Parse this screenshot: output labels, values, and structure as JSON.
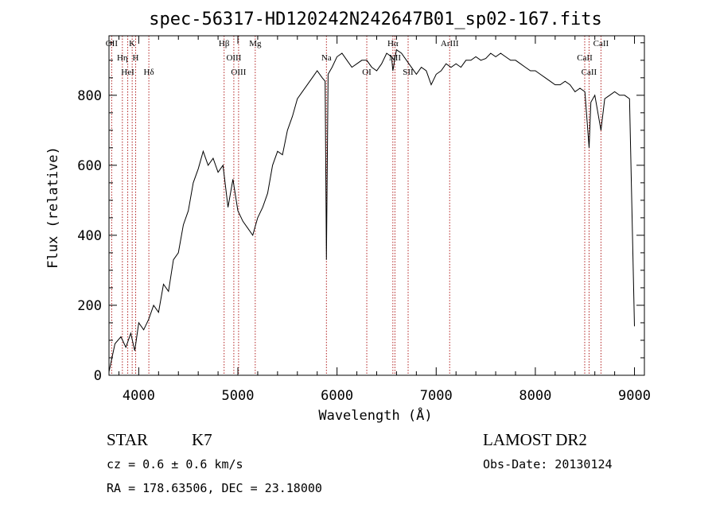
{
  "chart_data": {
    "type": "line",
    "title": "spec-56317-HD120242N242647B01_sp02-167.fits",
    "xlabel": "Wavelength (Å)",
    "ylabel": "Flux (relative)",
    "xlim": [
      3700,
      9100
    ],
    "ylim": [
      0,
      970
    ],
    "x_ticks": [
      4000,
      5000,
      6000,
      7000,
      8000,
      9000
    ],
    "y_ticks": [
      0,
      200,
      400,
      600,
      800
    ],
    "grid": false,
    "series": [
      {
        "x": [
          3700,
          3760,
          3820,
          3870,
          3920,
          3960,
          4000,
          4050,
          4100,
          4150,
          4200,
          4250,
          4300,
          4350,
          4400,
          4450,
          4500,
          4550,
          4600,
          4650,
          4700,
          4750,
          4800,
          4850,
          4900,
          4950,
          5000,
          5050,
          5100,
          5150,
          5200,
          5250,
          5300,
          5350,
          5400,
          5450,
          5500,
          5550,
          5600,
          5650,
          5700,
          5750,
          5800,
          5850,
          5880,
          5893,
          5910,
          5950,
          6000,
          6050,
          6100,
          6150,
          6200,
          6250,
          6300,
          6350,
          6400,
          6450,
          6500,
          6550,
          6563,
          6600,
          6650,
          6700,
          6750,
          6800,
          6850,
          6900,
          6950,
          7000,
          7050,
          7100,
          7150,
          7200,
          7250,
          7300,
          7350,
          7400,
          7450,
          7500,
          7550,
          7600,
          7650,
          7700,
          7750,
          7800,
          7850,
          7900,
          7950,
          8000,
          8050,
          8100,
          8150,
          8200,
          8250,
          8300,
          8350,
          8400,
          8450,
          8500,
          8542,
          8560,
          8600,
          8662,
          8700,
          8750,
          8800,
          8850,
          8900,
          8950,
          9000
        ],
        "y": [
          10,
          90,
          110,
          80,
          120,
          70,
          150,
          130,
          160,
          200,
          180,
          260,
          240,
          330,
          350,
          430,
          470,
          550,
          590,
          640,
          600,
          620,
          580,
          600,
          480,
          560,
          470,
          440,
          420,
          400,
          450,
          480,
          520,
          600,
          640,
          630,
          700,
          740,
          790,
          810,
          830,
          850,
          870,
          850,
          840,
          330,
          860,
          880,
          910,
          920,
          900,
          880,
          890,
          900,
          900,
          880,
          870,
          890,
          920,
          910,
          870,
          930,
          920,
          900,
          880,
          860,
          880,
          870,
          830,
          860,
          870,
          890,
          880,
          890,
          880,
          900,
          900,
          910,
          900,
          905,
          920,
          910,
          920,
          910,
          900,
          900,
          890,
          880,
          870,
          870,
          860,
          850,
          840,
          830,
          830,
          840,
          830,
          810,
          820,
          810,
          650,
          780,
          800,
          700,
          790,
          800,
          810,
          800,
          800,
          790,
          140
        ]
      }
    ],
    "lines": [
      {
        "label": "OII",
        "x": 3727
      },
      {
        "label": "Hη",
        "x": 3835
      },
      {
        "label": "HeI",
        "x": 3889
      },
      {
        "label": "K",
        "x": 3934
      },
      {
        "label": "H",
        "x": 3969
      },
      {
        "label": "Hδ",
        "x": 4102
      },
      {
        "label": "Hβ",
        "x": 4861
      },
      {
        "label": "OIII",
        "x": 4959
      },
      {
        "label": "OIII",
        "x": 5007
      },
      {
        "label": "Mg",
        "x": 5175
      },
      {
        "label": "Na",
        "x": 5893
      },
      {
        "label": "OI",
        "x": 6300
      },
      {
        "label": "Hα",
        "x": 6563
      },
      {
        "label": "NII",
        "x": 6584
      },
      {
        "label": "SII",
        "x": 6717
      },
      {
        "label": "ArIII",
        "x": 7136
      },
      {
        "label": "CaII",
        "x": 8498
      },
      {
        "label": "CaII",
        "x": 8542
      },
      {
        "label": "CaII",
        "x": 8662
      }
    ]
  },
  "footer": {
    "class_label": "STAR",
    "subclass": "K7",
    "survey": "LAMOST DR2",
    "cz": "cz = 0.6 ± 0.6 km/s",
    "obs_date": "Obs-Date: 20130124",
    "coords": "RA = 178.63506, DEC =  23.18000"
  },
  "colors": {
    "spectrum": "#000000",
    "line_markers": "#b22222",
    "axes": "#000000"
  }
}
